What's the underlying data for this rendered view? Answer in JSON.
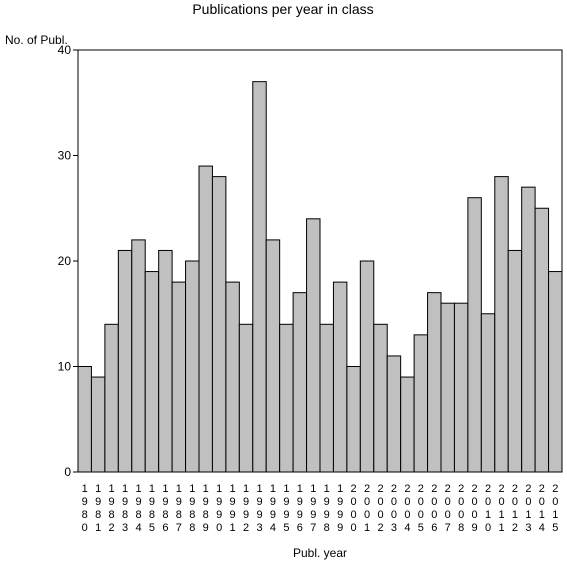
{
  "chart_data": {
    "type": "bar",
    "title": "Publications per year in class",
    "ylabel": "No. of Publ.",
    "xlabel": "Publ. year",
    "ylim": [
      0,
      40
    ],
    "yticks": [
      0,
      10,
      20,
      30,
      40
    ],
    "grid": false,
    "categories": [
      "1980",
      "1981",
      "1982",
      "1983",
      "1984",
      "1985",
      "1986",
      "1987",
      "1988",
      "1989",
      "1990",
      "1991",
      "1992",
      "1993",
      "1994",
      "1995",
      "1996",
      "1997",
      "1998",
      "1999",
      "2000",
      "2001",
      "2002",
      "2003",
      "2004",
      "2005",
      "2006",
      "2007",
      "2008",
      "2009",
      "2010",
      "2011",
      "2012",
      "2013",
      "2014",
      "2015"
    ],
    "values": [
      10,
      9,
      14,
      21,
      22,
      19,
      21,
      18,
      20,
      29,
      28,
      18,
      14,
      37,
      22,
      14,
      17,
      24,
      14,
      18,
      10,
      20,
      14,
      11,
      9,
      13,
      17,
      16,
      16,
      26,
      15,
      28,
      21,
      27,
      25,
      19
    ],
    "bar_color": "#c0c0c0",
    "bar_edge_color": "#000000"
  }
}
